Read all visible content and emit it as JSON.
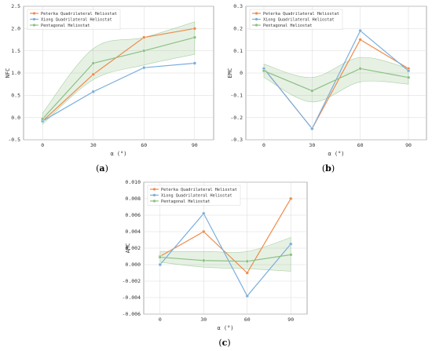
{
  "chart_data": [
    {
      "type": "line",
      "panel": "a",
      "caption": "(a)",
      "xlabel": "α (°)",
      "ylabel": "NFC",
      "x": [
        0,
        30,
        60,
        90
      ],
      "xticks": [
        "0",
        "30",
        "60",
        "90"
      ],
      "ylim": [
        -0.5,
        2.5
      ],
      "yticks": [
        "-0.5",
        "0.0",
        "0.5",
        "1.0",
        "1.5",
        "2.0",
        "2.5"
      ],
      "grid": true,
      "legend": "top-left",
      "series": [
        {
          "name": "Peterka Quadrilateral Heliostat",
          "color": "#f08a4b",
          "values": [
            -0.08,
            0.97,
            1.8,
            2.0
          ]
        },
        {
          "name": "Xiong Quadrilateral Heliostat",
          "color": "#7aaedc",
          "values": [
            -0.08,
            0.58,
            1.12,
            1.22
          ]
        },
        {
          "name": "Pentagonal Heliostat",
          "color": "#8cc084",
          "values": [
            -0.03,
            1.22,
            1.5,
            1.8
          ],
          "band_upper": [
            0.1,
            1.55,
            1.8,
            2.15
          ],
          "band_lower": [
            -0.15,
            0.85,
            1.18,
            1.42
          ]
        }
      ]
    },
    {
      "type": "line",
      "panel": "b",
      "caption": "(b)",
      "xlabel": "α (°)",
      "ylabel": "EMC",
      "x": [
        0,
        30,
        60,
        90
      ],
      "xticks": [
        "0",
        "30",
        "60",
        "90"
      ],
      "ylim": [
        -0.3,
        0.3
      ],
      "yticks": [
        "-0.3",
        "-0.2",
        "-0.1",
        "0",
        "0.1",
        "0.2",
        "0.3"
      ],
      "grid": true,
      "legend": "top-left",
      "series": [
        {
          "name": "Peterka Quadrilateral Heliostat",
          "color": "#f08a4b",
          "values": [
            0.02,
            -0.25,
            0.15,
            0.02
          ]
        },
        {
          "name": "Xiong Quadrilateral Heliostat",
          "color": "#7aaedc",
          "values": [
            0.02,
            -0.25,
            0.19,
            0.01
          ]
        },
        {
          "name": "Pentagonal Heliostat",
          "color": "#8cc084",
          "values": [
            0.01,
            -0.08,
            0.02,
            -0.02
          ],
          "band_upper": [
            0.04,
            -0.02,
            0.07,
            0.02
          ],
          "band_lower": [
            -0.02,
            -0.13,
            -0.04,
            -0.05
          ]
        }
      ]
    },
    {
      "type": "line",
      "panel": "c",
      "caption": "(c)",
      "xlabel": "α (°)",
      "ylabel": "AMC",
      "x": [
        0,
        30,
        60,
        90
      ],
      "xticks": [
        "0",
        "30",
        "60",
        "90"
      ],
      "ylim": [
        -0.006,
        0.01
      ],
      "yticks": [
        "-0.006",
        "-0.004",
        "-0.002",
        "0.000",
        "0.002",
        "0.004",
        "0.006",
        "0.008",
        "0.010"
      ],
      "grid": true,
      "legend": "top-left",
      "series": [
        {
          "name": "Peterka Quadrilateral Heliostat",
          "color": "#f08a4b",
          "values": [
            0.001,
            0.004,
            -0.001,
            0.008
          ]
        },
        {
          "name": "Xiong Quadrilateral Heliostat",
          "color": "#7aaedc",
          "values": [
            0.0,
            0.0062,
            -0.0038,
            0.0025
          ]
        },
        {
          "name": "Pentagonal Heliostat",
          "color": "#8cc084",
          "values": [
            0.0009,
            0.0005,
            0.0004,
            0.0012
          ],
          "band_upper": [
            0.0016,
            0.0016,
            0.0016,
            0.0033
          ],
          "band_lower": [
            0.0003,
            -0.0003,
            -0.0005,
            -0.0008
          ]
        }
      ]
    }
  ]
}
